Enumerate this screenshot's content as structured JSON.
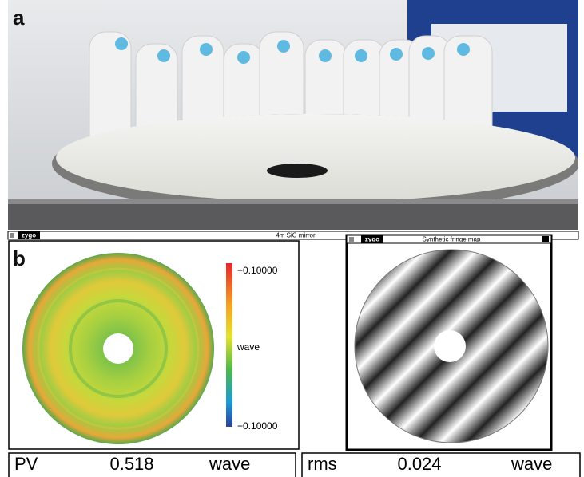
{
  "panel_a": {
    "label": "a"
  },
  "panel_b": {
    "label": "b",
    "map_window": {
      "logo": "zygo",
      "title": "4m SiC mirror",
      "colorbar": {
        "max_label": "+0.10000",
        "unit": "wave",
        "min_label": "−0.10000"
      }
    },
    "fringe_window": {
      "logo": "zygo",
      "title": "Synthetic fringe map"
    },
    "stats": [
      {
        "name": "PV",
        "value": 0.518,
        "unit": "wave"
      },
      {
        "name": "rms",
        "value": 0.024,
        "unit": "wave"
      }
    ]
  }
}
